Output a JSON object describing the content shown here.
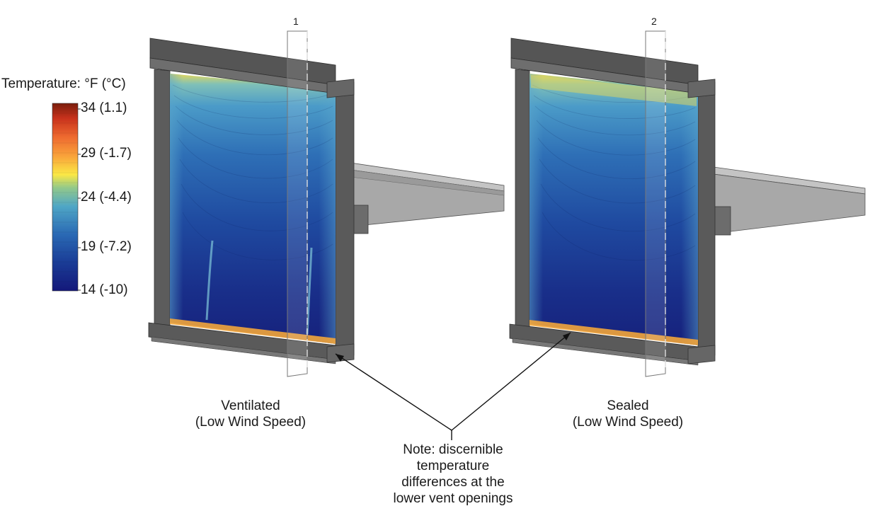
{
  "legend": {
    "title": "Temperature: °F (°C)",
    "ticks": [
      "34 (1.1)",
      "29 (-1.7)",
      "24 (-4.4)",
      "19 (-7.2)",
      "14 (-10)"
    ],
    "gradient_stops": [
      "#7a1d0c",
      "#c8321c",
      "#ee6a30",
      "#f9a23a",
      "#fbe845",
      "#93c98a",
      "#4fa6c6",
      "#2a69b4",
      "#1a3c96",
      "#14187a"
    ]
  },
  "panels": [
    {
      "section_number": "1",
      "caption_line1": "Ventilated",
      "caption_line2": "(Low Wind Speed)"
    },
    {
      "section_number": "2",
      "caption_line1": "Sealed",
      "caption_line2": "(Low Wind Speed)"
    }
  ],
  "note": {
    "line1": "Note: discernible",
    "line2": "temperature",
    "line3": "differences at the",
    "line4": "lower vent openings"
  },
  "colors": {
    "frame_dark": "#4a4a4a",
    "frame_mid": "#6b6b6b",
    "slab_top": "#b9b9b9",
    "slab_side": "#8e8e8e",
    "warm_edge": "#f2a53a"
  }
}
